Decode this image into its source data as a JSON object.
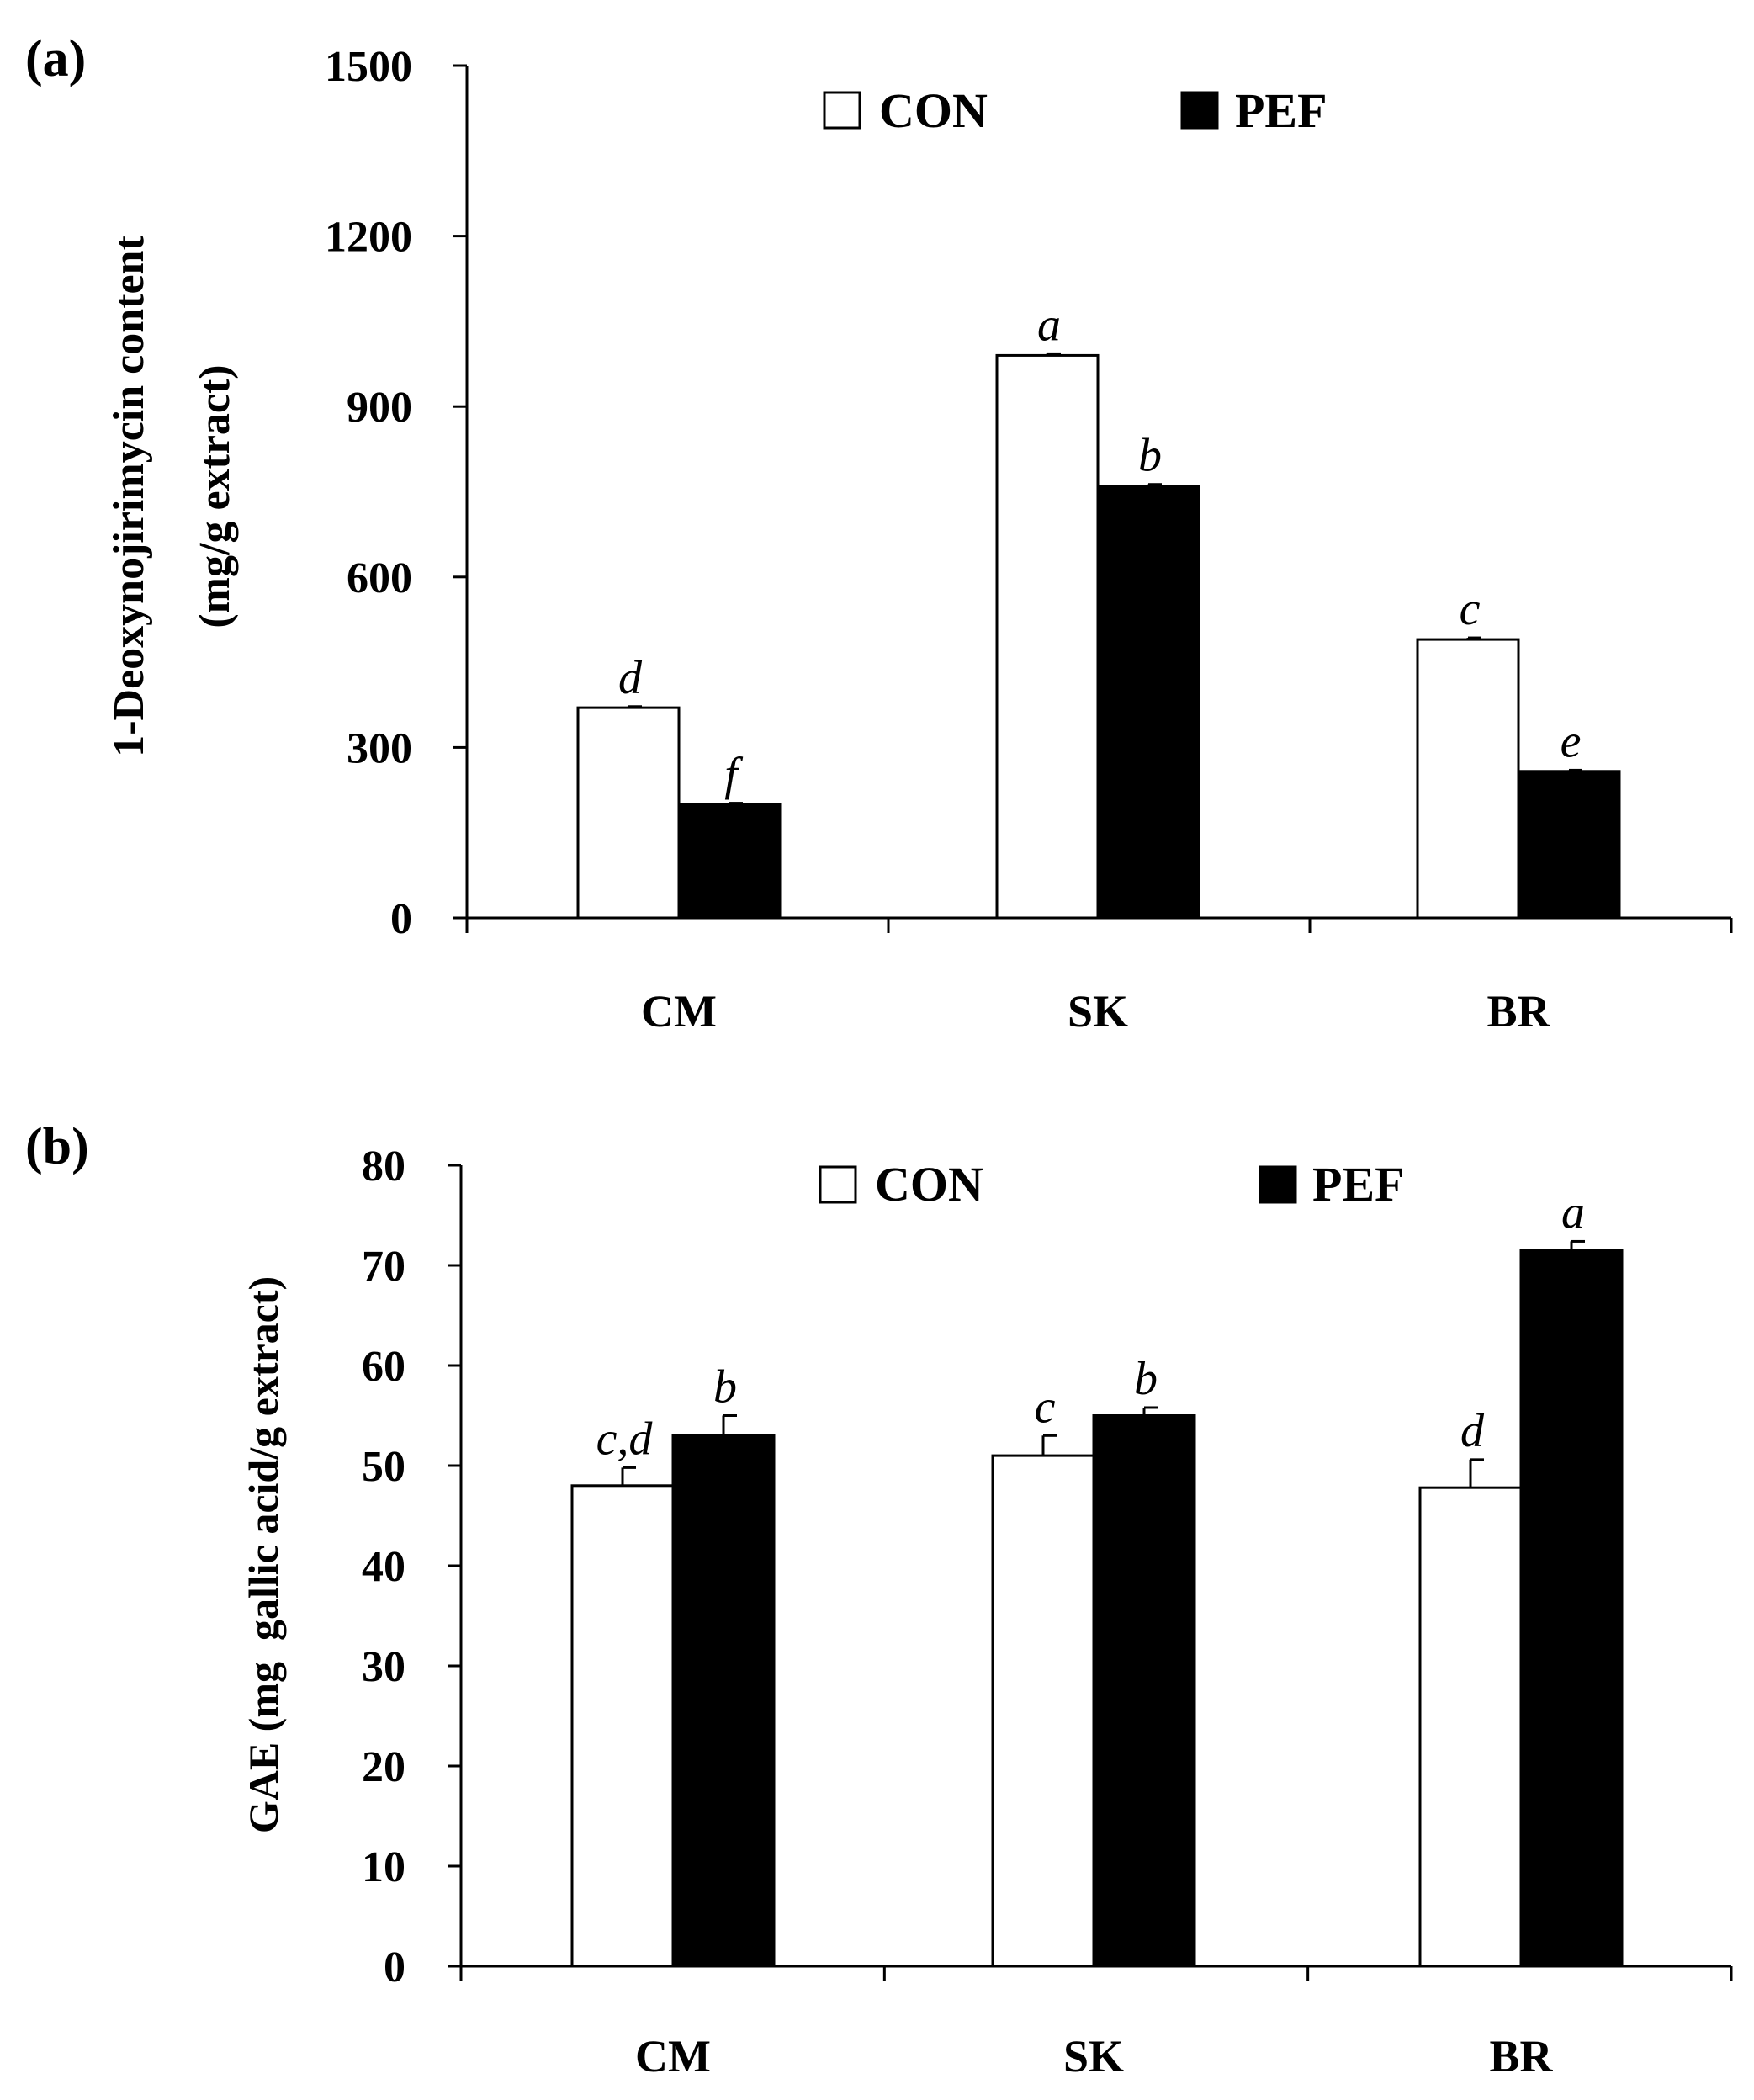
{
  "chart_data": [
    {
      "panel_label": "(a)",
      "type": "bar",
      "ylabel_lines": [
        "1-Deoxynojirimycin content",
        "(mg/g extract)"
      ],
      "ylim": [
        0,
        1500
      ],
      "yticks": [
        0,
        300,
        600,
        900,
        1200,
        1500
      ],
      "categories": [
        "CM",
        "SK",
        "BR"
      ],
      "legend_position": "top",
      "series": [
        {
          "name": "CON",
          "color": "#ffffff",
          "values": [
            370,
            990,
            490
          ],
          "errors": [
            2,
            3,
            3
          ],
          "letters": [
            "d",
            "a",
            "c"
          ]
        },
        {
          "name": "PEF",
          "color": "#000000",
          "values": [
            200,
            760,
            258
          ],
          "errors": [
            2,
            3,
            2
          ],
          "letters": [
            "f",
            "b",
            "e"
          ]
        }
      ]
    },
    {
      "panel_label": "(b)",
      "type": "bar",
      "ylabel_lines": [
        "GAE (mg  gallic acid/g extract)"
      ],
      "ylim": [
        0,
        80
      ],
      "yticks": [
        0,
        10,
        20,
        30,
        40,
        50,
        60,
        70,
        80
      ],
      "categories": [
        "CM",
        "SK",
        "BR"
      ],
      "legend_position": "top",
      "series": [
        {
          "name": "CON",
          "color": "#ffffff",
          "values": [
            48,
            51,
            47.8
          ],
          "errors": [
            1.8,
            2.0,
            2.8
          ],
          "letters": [
            "c,d",
            "c",
            "d"
          ]
        },
        {
          "name": "PEF",
          "color": "#000000",
          "values": [
            53,
            55,
            71.5
          ],
          "errors": [
            2.0,
            0.8,
            0.9
          ],
          "letters": [
            "b",
            "b",
            "a"
          ]
        }
      ]
    }
  ]
}
